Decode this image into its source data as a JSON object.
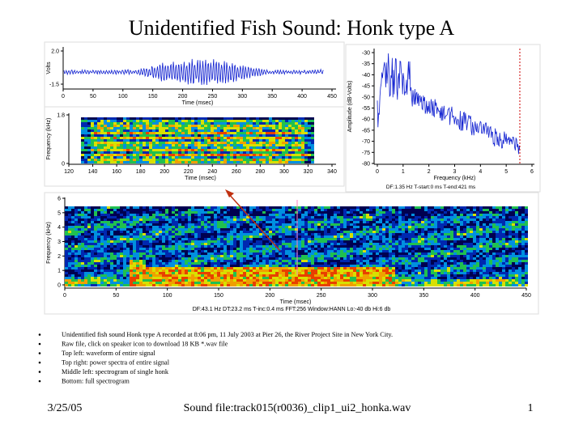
{
  "title": "Unidentified Fish Sound: Honk type A",
  "waveform": {
    "y_label": "Volts",
    "y_ticks": [
      "2.0",
      "-1.5"
    ],
    "x_ticks": [
      "0",
      "50",
      "100",
      "150",
      "200",
      "250",
      "300",
      "350",
      "400",
      "450"
    ],
    "x_label": "Time (msec)"
  },
  "spectrum": {
    "y_label": "Amplitude (dB-Volts)",
    "y_ticks": [
      "-30",
      "-35",
      "-40",
      "-45",
      "-50",
      "-55",
      "-60",
      "-65",
      "-70",
      "-75",
      "-80"
    ],
    "x_ticks": [
      "0",
      "1",
      "2",
      "3",
      "4",
      "5",
      "6"
    ],
    "x_label": "Frequency (kHz)",
    "info": "DF:1.35 Hz   T-start:0 ms   T-end:421 ms"
  },
  "detail_spectrogram": {
    "y_label": "Frequency (kHz)",
    "y_ticks": [
      "1.8",
      "0"
    ],
    "x_ticks": [
      "120",
      "140",
      "160",
      "180",
      "200",
      "220",
      "240",
      "260",
      "280",
      "300",
      "320",
      "340"
    ],
    "x_label": "Time (msec)"
  },
  "full_spectrogram": {
    "y_label": "Frequency (kHz)",
    "y_ticks": [
      "0",
      "1",
      "2",
      "3",
      "4",
      "5",
      "6"
    ],
    "x_ticks": [
      "0",
      "50",
      "100",
      "150",
      "200",
      "250",
      "300",
      "350",
      "400",
      "450"
    ],
    "x_label": "Time (msec)",
    "info": "DF:43.1 Hz   DT:23.2 ms   T-inc:0.4 ms   FFT:256   Window:HANN   Lo:-40 db   Hi:6 db"
  },
  "bullets": [
    "Unidentified fish sound Honk type A recorded at 8:06 pm, 11 July 2003 at Pier 26, the River Project Site in New York City.",
    "Raw file, click on speaker icon to download 18 KB *.wav file",
    "Top left: waveform of entire signal",
    "Top right: power spectra of entire signal",
    "Middle left: spectrogram of single honk",
    "Bottom: full spectrogram"
  ],
  "footer": {
    "date": "3/25/05",
    "file": "Sound file:track015(r0036)_clip1_ui2_honka.wav",
    "page": "1"
  }
}
